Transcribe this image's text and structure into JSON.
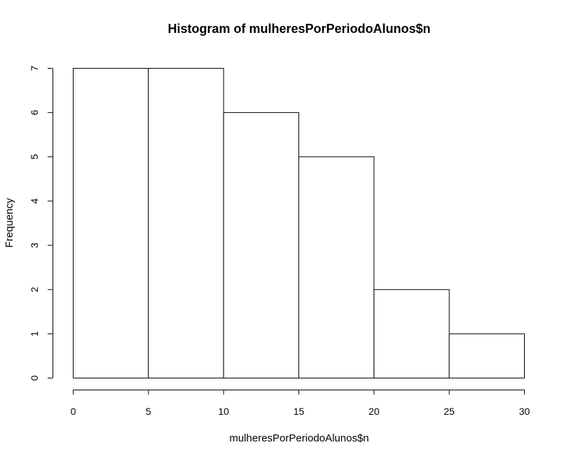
{
  "chart_data": {
    "type": "bar",
    "title": "Histogram of mulheresPorPeriodoAlunos$n",
    "xlabel": "mulheresPorPeriodoAlunos$n",
    "ylabel": "Frequency",
    "bins": [
      {
        "start": 0,
        "end": 5,
        "count": 7
      },
      {
        "start": 5,
        "end": 10,
        "count": 7
      },
      {
        "start": 10,
        "end": 15,
        "count": 6
      },
      {
        "start": 15,
        "end": 20,
        "count": 5
      },
      {
        "start": 20,
        "end": 25,
        "count": 2
      },
      {
        "start": 25,
        "end": 30,
        "count": 1
      }
    ],
    "xticks": [
      0,
      5,
      10,
      15,
      20,
      25,
      30
    ],
    "yticks": [
      0,
      1,
      2,
      3,
      4,
      5,
      6,
      7
    ],
    "xlim": [
      0,
      30
    ],
    "ylim": [
      0,
      7
    ],
    "grid": false,
    "legend": "none"
  }
}
